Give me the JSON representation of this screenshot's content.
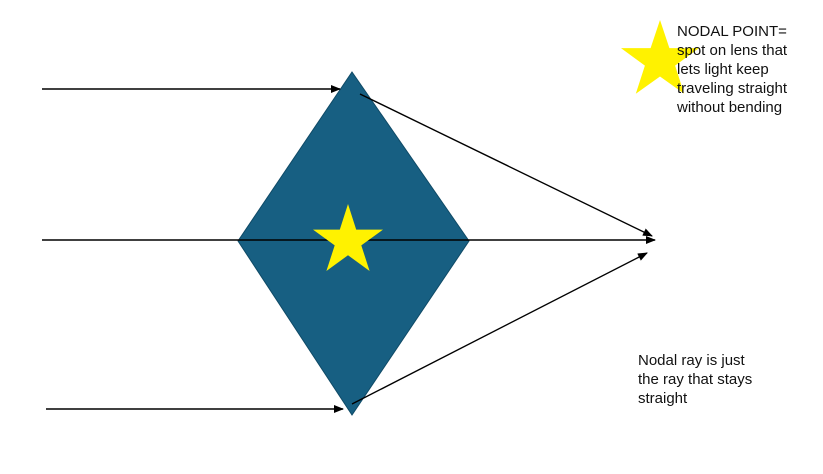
{
  "colors": {
    "lens_fill": "#175f82",
    "star_fill": "#fff200",
    "ray_stroke": "#000000",
    "background": "#ffffff"
  },
  "annotations": {
    "nodal_point_note": "NODAL POINT=\nspot on lens that\nlets light keep\ntraveling straight\nwithout bending",
    "nodal_ray_note": "Nodal ray is just\nthe ray that stays\nstraight"
  },
  "icons": {
    "legend_star": "star-icon",
    "center_star": "star-icon"
  }
}
